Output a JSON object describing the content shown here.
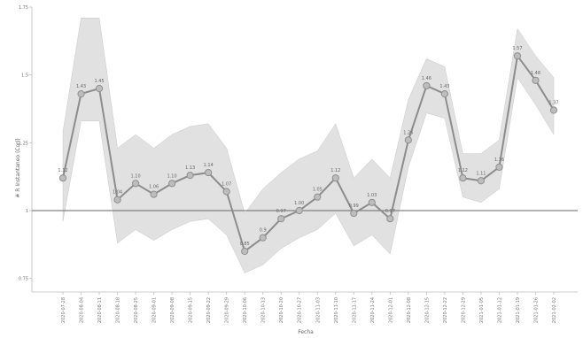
{
  "chart_data": {
    "type": "line",
    "xlabel": "Fecha",
    "ylabel": "# R Instantaneo (Cori)",
    "ylim": [
      0.7,
      1.75
    ],
    "yticks": [
      {
        "value": 0.75,
        "label": "0.75"
      },
      {
        "value": 1.0,
        "label": "1"
      },
      {
        "value": 1.25,
        "label": "1.25"
      },
      {
        "value": 1.5,
        "label": "1.5"
      },
      {
        "value": 1.75,
        "label": "1.75"
      }
    ],
    "reference_line": 1.0,
    "grid": false,
    "legend": "none",
    "colors": {
      "line": "#8c8c8c",
      "marker_fill": "#bdbdbd",
      "marker_stroke": "#8f8f8f",
      "band": "#d9d9d9",
      "reference": "#666666",
      "axis": "#bcbcbc"
    },
    "x": [
      "2020-07-28",
      "2020-08-04",
      "2020-08-11",
      "2020-08-18",
      "2020-08-25",
      "2020-09-01",
      "2020-09-08",
      "2020-09-15",
      "2020-09-22",
      "2020-09-29",
      "2020-10-06",
      "2020-10-13",
      "2020-10-20",
      "2020-10-27",
      "2020-11-03",
      "2020-11-10",
      "2020-11-17",
      "2020-11-24",
      "2020-12-01",
      "2020-12-08",
      "2020-12-15",
      "2020-12-22",
      "2020-12-29",
      "2021-01-05",
      "2021-01-12",
      "2021-01-19",
      "2021-01-26",
      "2021-02-02"
    ],
    "series": [
      {
        "values": [
          1.12,
          1.43,
          1.45,
          1.04,
          1.1,
          1.06,
          1.1,
          1.13,
          1.14,
          1.07,
          0.85,
          0.9,
          0.97,
          1.0,
          1.05,
          1.12,
          0.99,
          1.03,
          0.97,
          1.26,
          1.46,
          1.43,
          1.12,
          1.11,
          1.16,
          1.57,
          1.48,
          1.37
        ],
        "labels": [
          "1.12",
          "1.43",
          "1.45",
          "1.04",
          "1.10",
          "1.06",
          "1.10",
          "1.13",
          "1.14",
          "1.07",
          "0.85",
          "0.9",
          "0.97",
          "1.00",
          "1.05",
          "1.12",
          "0.99",
          "1.03",
          "0.97",
          "1.26",
          "1.46",
          "1.43",
          "1.12",
          "1.11",
          "1.16",
          "1.57",
          "1.48",
          "1.37"
        ],
        "lower": [
          0.96,
          1.33,
          1.33,
          0.88,
          0.93,
          0.89,
          0.93,
          0.96,
          0.97,
          0.91,
          0.77,
          0.8,
          0.86,
          0.9,
          0.93,
          0.99,
          0.87,
          0.91,
          0.84,
          1.16,
          1.36,
          1.34,
          1.05,
          1.03,
          1.08,
          1.49,
          1.39,
          1.28
        ],
        "upper": [
          1.29,
          1.71,
          1.71,
          1.23,
          1.28,
          1.23,
          1.28,
          1.31,
          1.32,
          1.23,
          0.99,
          1.08,
          1.14,
          1.19,
          1.22,
          1.32,
          1.12,
          1.19,
          1.12,
          1.41,
          1.56,
          1.53,
          1.21,
          1.21,
          1.26,
          1.67,
          1.57,
          1.49
        ]
      }
    ]
  }
}
